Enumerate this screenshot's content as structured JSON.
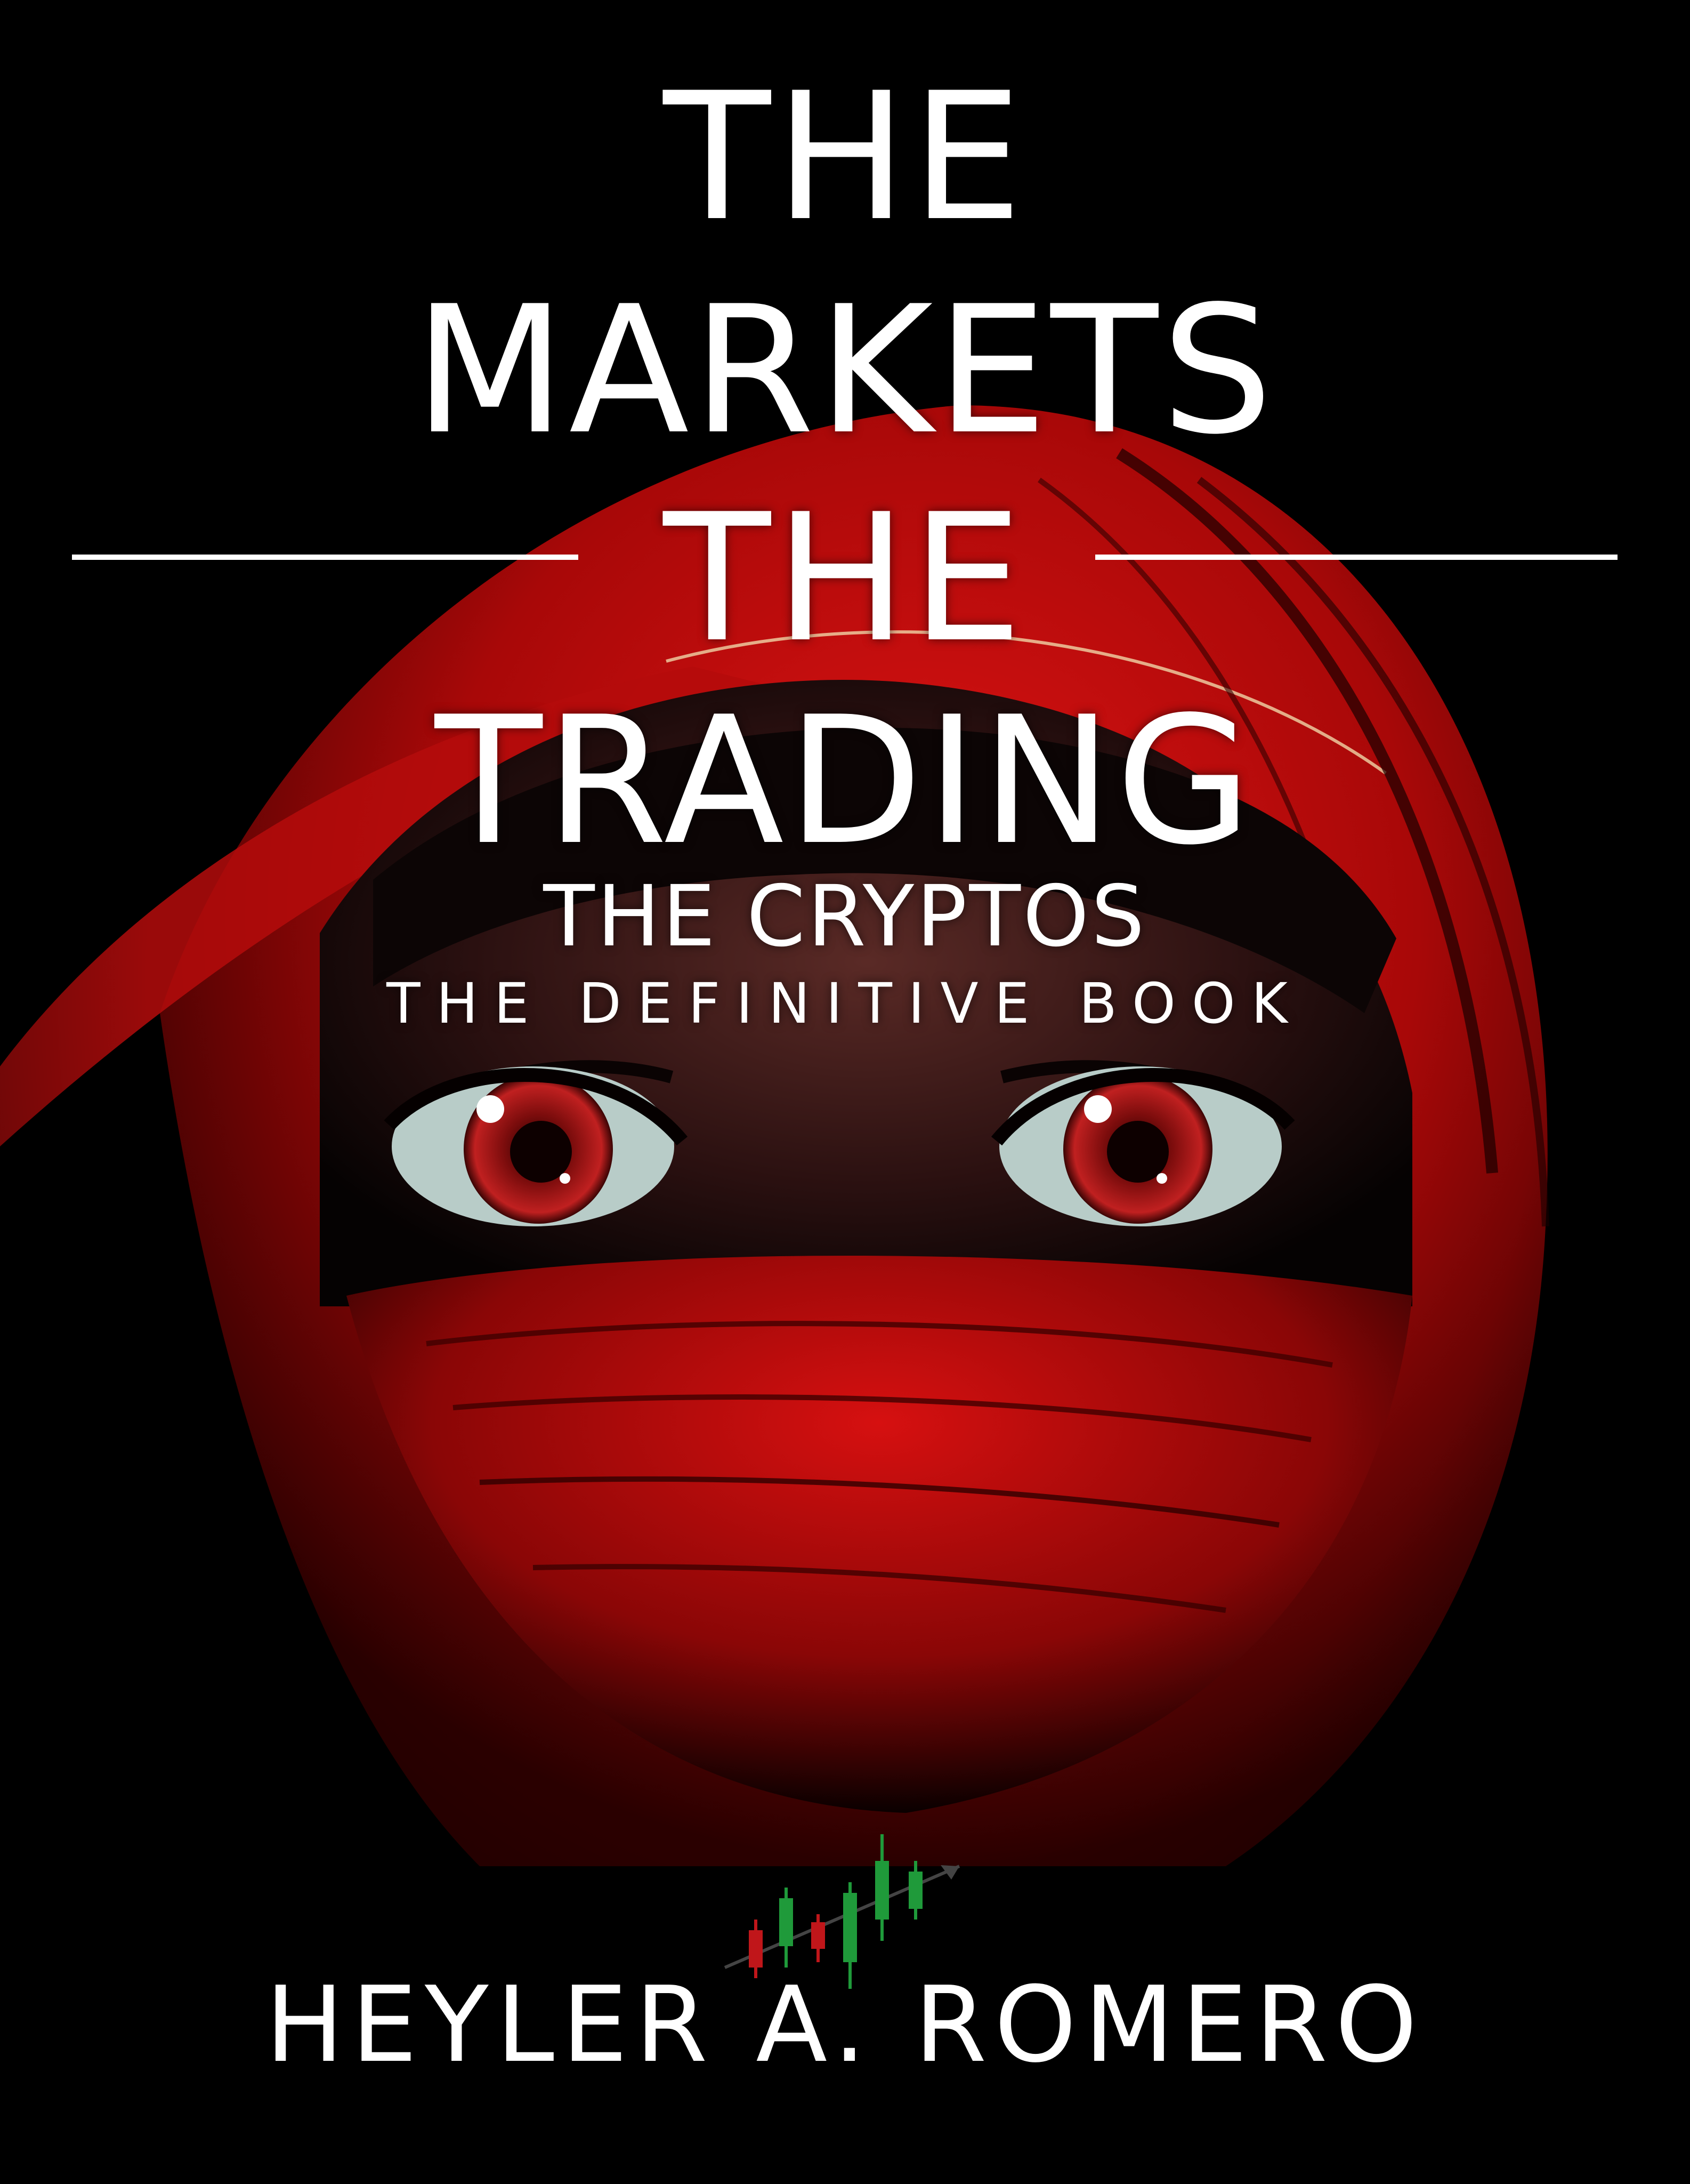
{
  "cover": {
    "title_lines": [
      "THE",
      "MARKETS",
      "THE",
      "TRADING"
    ],
    "subtitle": "THE CRYPTOS",
    "tagline": "THE DEFINITIVE BOOK",
    "author": "HEYLER A. ROMERO"
  },
  "colors": {
    "background": "#000000",
    "scarf_red": "#c00a0a",
    "text": "#ffffff",
    "candle_up": "#1f9a3a",
    "candle_down": "#c0161a"
  }
}
